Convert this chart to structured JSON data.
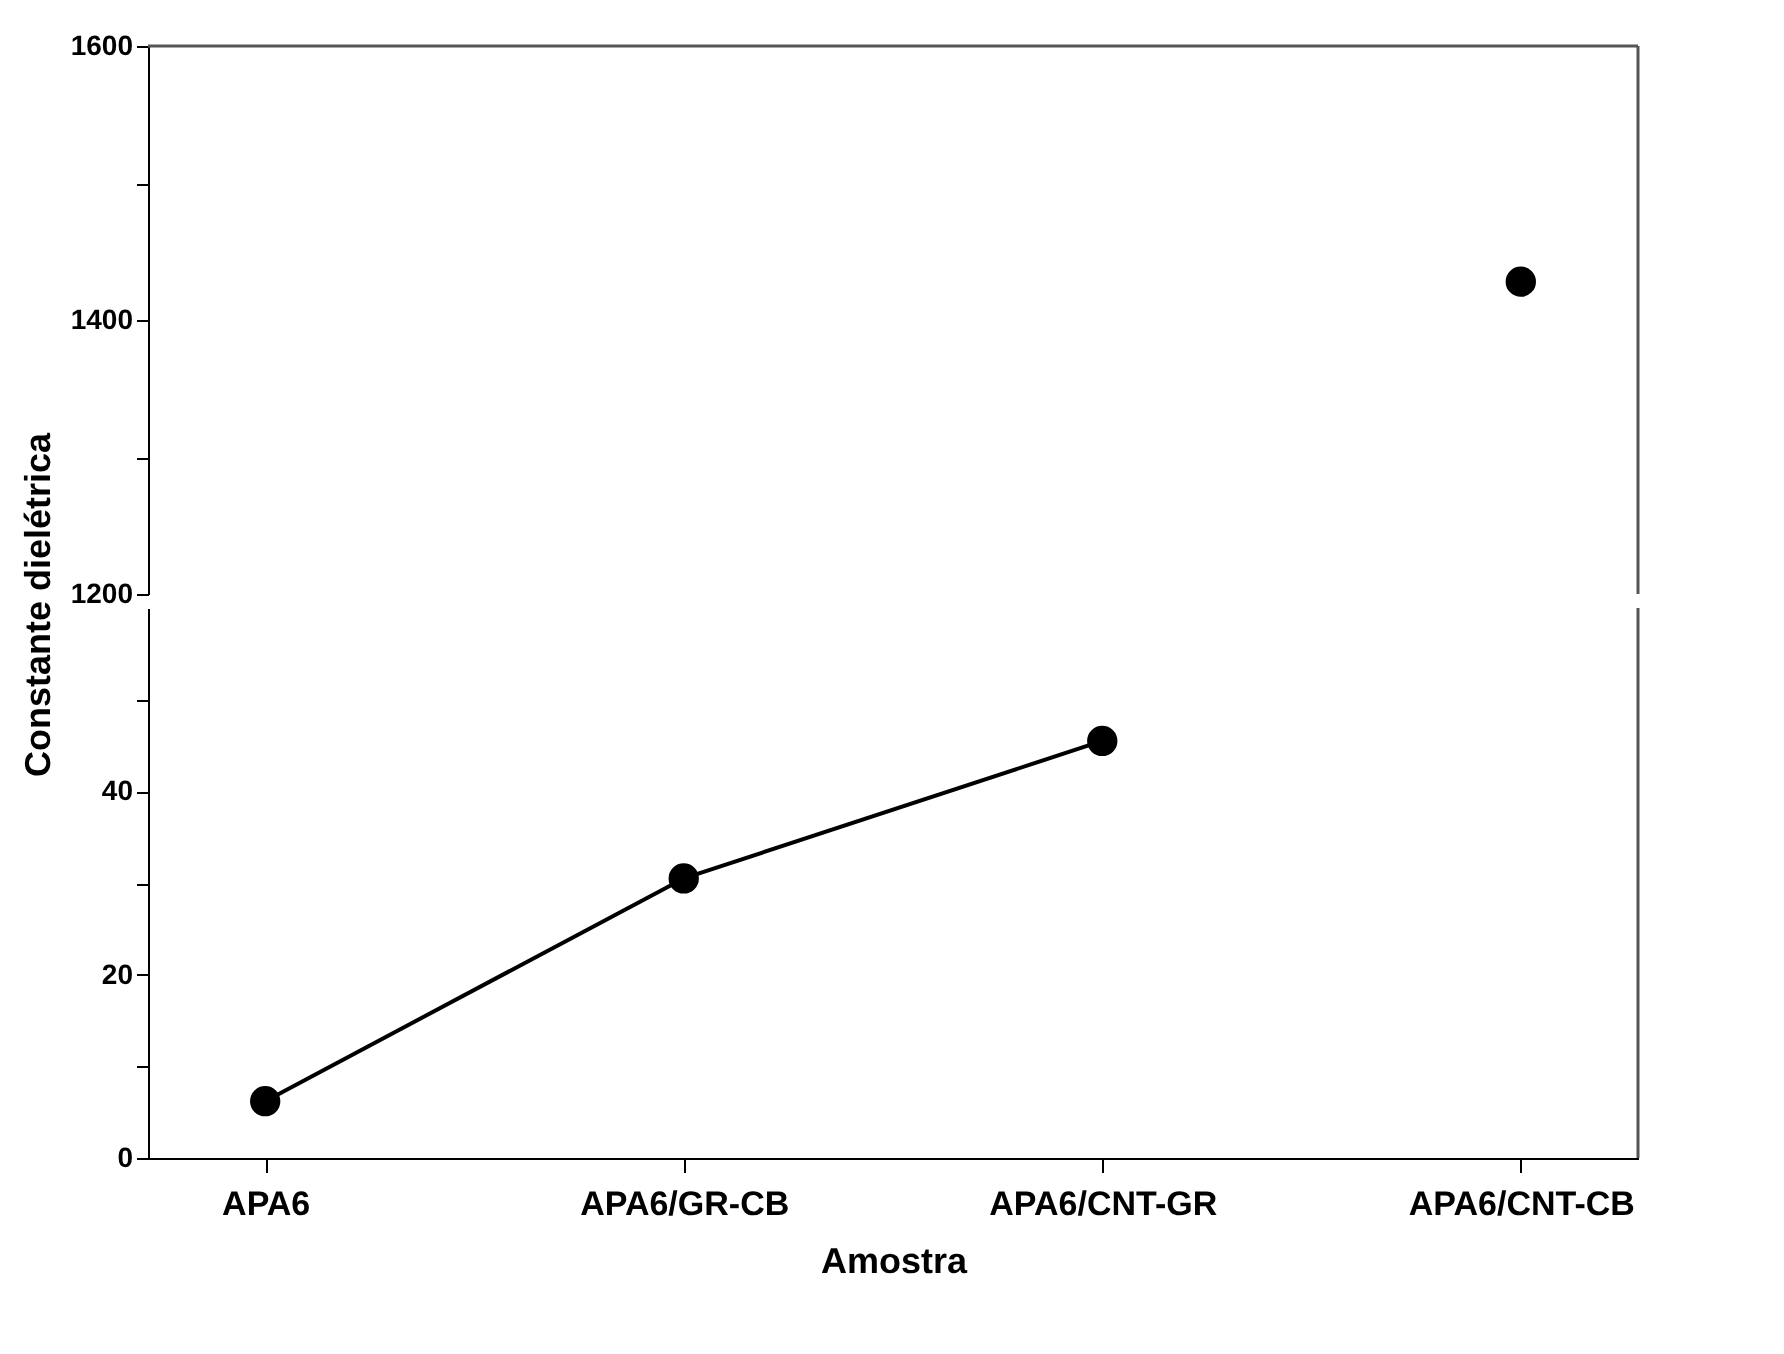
{
  "chart_data": [
    {
      "type": "scatter",
      "categories": [
        null,
        null,
        null,
        null
      ],
      "tick_labels": "y",
      "ylim": [
        1200,
        1600
      ],
      "yticks": [
        1200,
        {
          "value": 1300,
          "label": null
        },
        1400,
        {
          "value": 1500,
          "label": null
        },
        1600
      ],
      "marker": "circle",
      "grid": false,
      "series": [
        {
          "color": "#000000",
          "values": [
            null,
            null,
            null,
            1428
          ]
        }
      ]
    },
    {
      "type": "line",
      "categories": [
        "APA6",
        "APA6/GR-CB",
        "APA6/CNT-GR",
        "APA6/CNT-CB"
      ],
      "xlabel": "Amostra",
      "ylabel": "Constante dielétrica",
      "ylim": [
        0,
        60
      ],
      "yticks": [
        0,
        {
          "value": 10,
          "label": null
        },
        20,
        {
          "value": 30,
          "label": null
        },
        40,
        {
          "value": 50,
          "label": null
        }
      ],
      "marker": "circle",
      "line_style": "solid",
      "grid": false,
      "series": [
        {
          "color": "#000000",
          "values": [
            6.2,
            30.5,
            45.5,
            null
          ]
        }
      ]
    }
  ]
}
